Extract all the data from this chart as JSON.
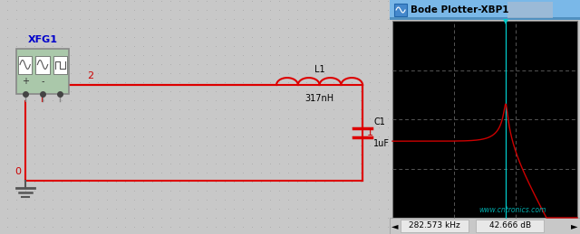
{
  "bg_color": "#c8c8c8",
  "dot_color": "#aaaaaa",
  "schematic_bg": "#c8c8c8",
  "bode_title": "Bode Plotter-XBP1",
  "bode_plot_bg": "#000000",
  "bode_grid_color": "#666666",
  "bode_line_color": "#cc0000",
  "bode_cursor_color": "#00cccc",
  "status_bar_text_left": "282.573 kHz",
  "status_bar_text_right": "42.666 dB",
  "wire_color": "#dd0000",
  "label_color": "#000000",
  "red_label_color": "#cc0000",
  "xfg_label": "XFG1",
  "inductor_label": "L1",
  "inductor_value": "317nH",
  "capacitor_label": "C1",
  "capacitor_value": "1uF",
  "website": "www.cntronics.com",
  "website_color": "#00aaaa",
  "title_bar_color": "#7ab8e8",
  "window_bg": "#e0e8f0",
  "xfg_box_color": "#aac8aa",
  "xfg_box_edge": "#888888"
}
